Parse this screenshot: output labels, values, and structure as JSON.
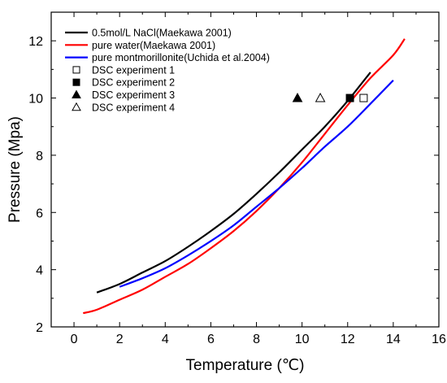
{
  "chart_data": {
    "type": "line",
    "xlabel": "Temperature (℃)",
    "ylabel": "Pressure (Mpa)",
    "xlim": [
      -1,
      16
    ],
    "ylim": [
      2,
      13
    ],
    "xticks": [
      0,
      2,
      4,
      6,
      8,
      10,
      12,
      14,
      16
    ],
    "yticks": [
      2,
      4,
      6,
      8,
      10,
      12
    ],
    "grid": false,
    "legend_placement": "top-left",
    "series": [
      {
        "name": "0.5mol/L NaCl(Maekawa 2001)",
        "kind": "line",
        "color": "#000000",
        "x": [
          1.0,
          2.0,
          3.0,
          4.0,
          5.0,
          6.0,
          7.0,
          8.0,
          9.0,
          10.0,
          11.0,
          12.0,
          13.0
        ],
        "y": [
          3.2,
          3.5,
          3.9,
          4.3,
          4.8,
          5.35,
          5.95,
          6.65,
          7.4,
          8.2,
          9.0,
          9.9,
          10.9
        ]
      },
      {
        "name": "pure water(Maekawa 2001)",
        "kind": "line",
        "color": "#ff0000",
        "x": [
          0.4,
          1.0,
          2.0,
          3.0,
          4.0,
          5.0,
          6.0,
          7.0,
          8.0,
          9.0,
          10.0,
          11.0,
          12.0,
          13.0,
          14.0,
          14.5
        ],
        "y": [
          2.48,
          2.6,
          2.95,
          3.3,
          3.75,
          4.2,
          4.75,
          5.35,
          6.05,
          6.85,
          7.75,
          8.75,
          9.75,
          10.7,
          11.5,
          12.07
        ]
      },
      {
        "name": "pure montmorillonite(Uchida et al.2004)",
        "kind": "line",
        "color": "#0000ff",
        "x": [
          2.0,
          3.0,
          4.0,
          5.0,
          6.0,
          7.0,
          8.0,
          9.0,
          10.0,
          11.0,
          12.0,
          13.0,
          14.0
        ],
        "y": [
          3.4,
          3.7,
          4.05,
          4.5,
          5.0,
          5.55,
          6.2,
          6.85,
          7.55,
          8.3,
          9.0,
          9.8,
          10.62
        ]
      },
      {
        "name": "DSC experiment 1",
        "kind": "marker",
        "marker": "square-open",
        "color": "#000000",
        "x": [
          12.7
        ],
        "y": [
          10.0
        ]
      },
      {
        "name": "DSC experiment 2",
        "kind": "marker",
        "marker": "square-filled",
        "color": "#000000",
        "x": [
          12.1
        ],
        "y": [
          10.0
        ]
      },
      {
        "name": "DSC experiment 3",
        "kind": "marker",
        "marker": "triangle-filled",
        "color": "#000000",
        "x": [
          9.8
        ],
        "y": [
          10.0
        ]
      },
      {
        "name": "DSC experiment 4",
        "kind": "marker",
        "marker": "triangle-open",
        "color": "#000000",
        "x": [
          10.8
        ],
        "y": [
          10.0
        ]
      }
    ]
  }
}
